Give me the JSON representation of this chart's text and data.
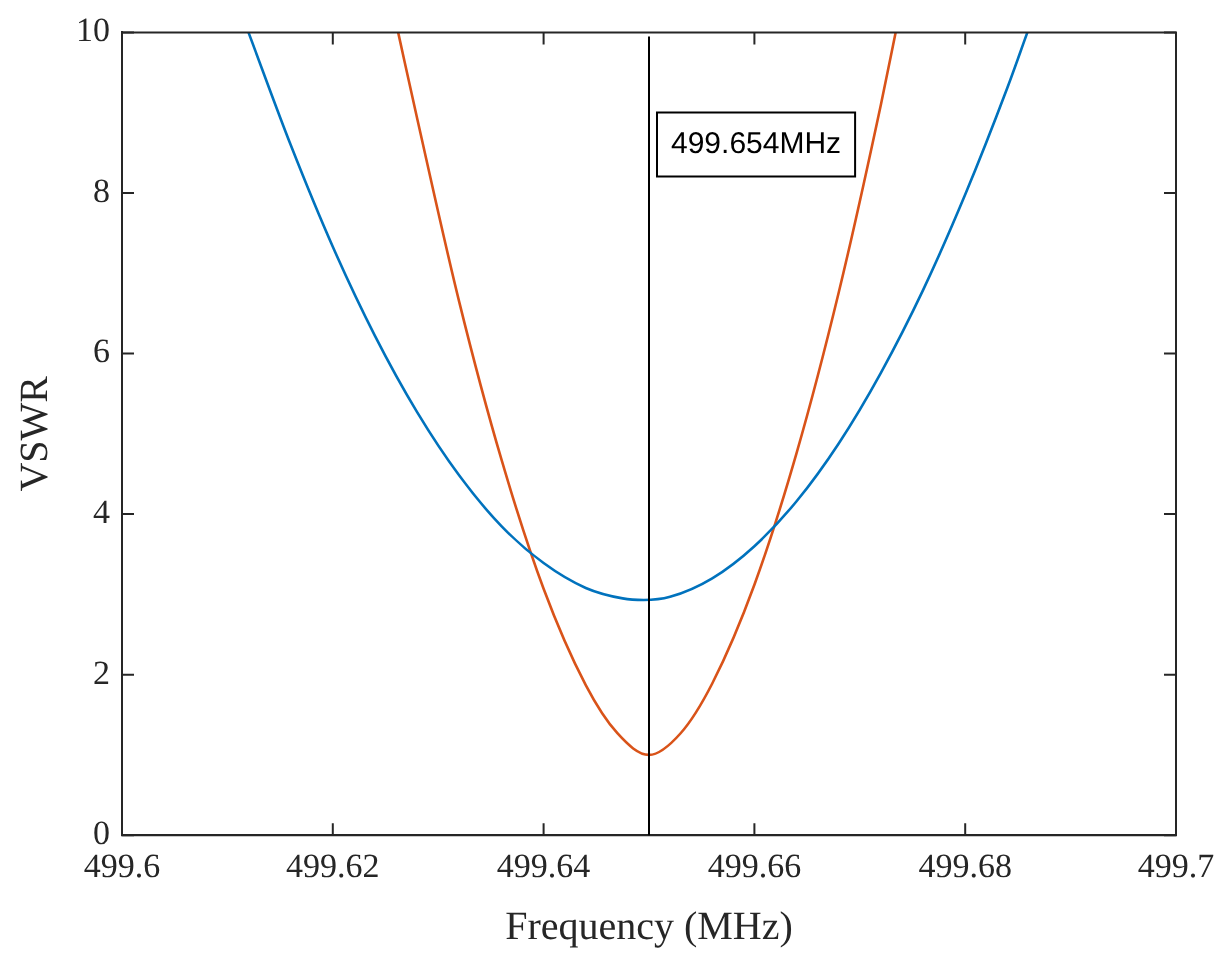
{
  "chart_data": {
    "type": "line",
    "xlabel": "Frequency (MHz)",
    "ylabel": "VSWR",
    "xlim": [
      499.6,
      499.7
    ],
    "xticks": [
      499.6,
      499.62,
      499.64,
      499.66,
      499.68,
      499.7
    ],
    "ylim": [
      0,
      10
    ],
    "yticks": [
      0,
      2,
      4,
      6,
      8,
      10
    ],
    "grid": false,
    "legend": false,
    "marker": "none",
    "line_style": "solid",
    "series": [
      {
        "color": "#0072bd",
        "x": [
          499.612,
          499.616,
          499.62,
          499.624,
          499.628,
          499.632,
          499.636,
          499.64,
          499.644,
          499.6475,
          499.6495,
          499.652,
          499.656,
          499.66,
          499.664,
          499.668,
          499.672,
          499.676,
          499.68,
          499.684,
          499.6859
        ],
        "values": [
          10,
          8.6,
          7.33,
          6.22,
          5.27,
          4.48,
          3.85,
          3.39,
          3.08,
          2.95,
          2.93,
          2.97,
          3.2,
          3.6,
          4.16,
          4.88,
          5.76,
          6.79,
          7.98,
          9.31,
          10
        ]
      },
      {
        "color": "#d95319",
        "x": [
          499.6262,
          499.628,
          499.632,
          499.636,
          499.64,
          499.644,
          499.647,
          499.65,
          499.653,
          499.656,
          499.66,
          499.664,
          499.668,
          499.672,
          499.6734
        ],
        "values": [
          10,
          8.93,
          6.64,
          4.68,
          3.07,
          1.87,
          1.27,
          1,
          1.27,
          1.89,
          3.12,
          4.76,
          6.76,
          9.1,
          10
        ]
      }
    ],
    "ref_lines": [
      {
        "axis": "x",
        "value": 499.65,
        "label": "499.654MHz",
        "color": "#000000"
      }
    ]
  }
}
